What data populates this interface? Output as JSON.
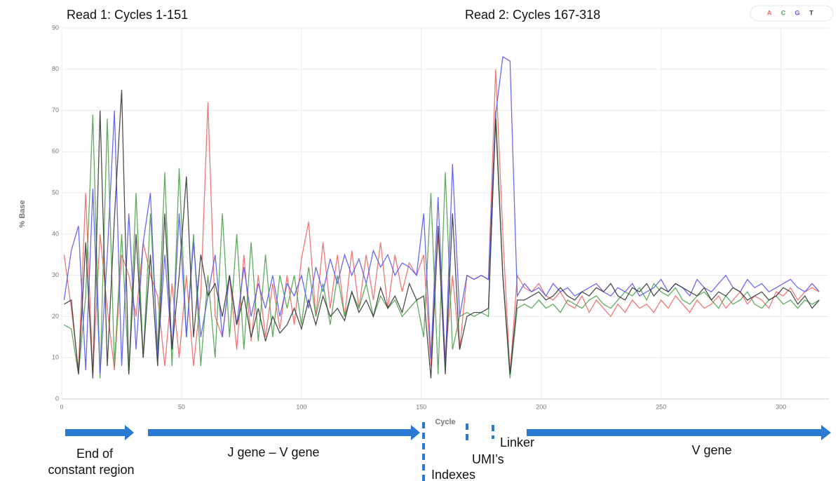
{
  "chart_data": {
    "type": "line",
    "annotations": [
      "Read 1: Cycles 1-151",
      "Read 2: Cycles 167-318"
    ],
    "ylabel": "% Base",
    "xlabel": "Cycle",
    "region_labels": [
      "End of",
      "constant region",
      "J gene – V gene",
      "Indexes",
      "UMI’s",
      "Linker",
      "V gene"
    ],
    "xlim": [
      0,
      320
    ],
    "ylim": [
      0,
      90
    ],
    "xticks": [
      0,
      50,
      100,
      150,
      200,
      250,
      300
    ],
    "yticks": [
      0,
      10,
      20,
      30,
      40,
      50,
      60,
      70,
      80,
      90
    ],
    "grid": true,
    "x": [
      1,
      4,
      7,
      10,
      13,
      16,
      19,
      22,
      25,
      28,
      31,
      34,
      37,
      40,
      43,
      46,
      49,
      52,
      55,
      58,
      61,
      64,
      67,
      70,
      73,
      76,
      79,
      82,
      85,
      88,
      91,
      94,
      97,
      100,
      103,
      106,
      109,
      112,
      115,
      118,
      121,
      124,
      127,
      130,
      133,
      136,
      139,
      142,
      145,
      148,
      151,
      154,
      157,
      160,
      163,
      166,
      169,
      172,
      175,
      178,
      181,
      184,
      187,
      190,
      193,
      196,
      199,
      202,
      205,
      208,
      211,
      214,
      217,
      220,
      223,
      226,
      229,
      232,
      235,
      238,
      241,
      244,
      247,
      250,
      253,
      256,
      259,
      262,
      265,
      268,
      271,
      274,
      277,
      280,
      283,
      286,
      289,
      292,
      295,
      298,
      301,
      304,
      307,
      310,
      313,
      316
    ],
    "series": [
      {
        "name": "A",
        "color": "#f06868",
        "values": [
          35,
          22,
          7,
          50,
          6,
          40,
          22,
          7,
          35,
          30,
          20,
          38,
          30,
          25,
          8,
          28,
          10,
          30,
          8,
          25,
          72,
          20,
          15,
          30,
          12,
          35,
          14,
          30,
          15,
          28,
          17,
          30,
          18,
          34,
          43,
          20,
          38,
          22,
          35,
          20,
          36,
          22,
          35,
          24,
          38,
          22,
          35,
          26,
          33,
          30,
          35,
          8,
          40,
          10,
          30,
          12,
          30,
          29,
          30,
          29,
          80,
          40,
          6,
          30,
          27,
          26,
          28,
          25,
          24,
          26,
          23,
          22,
          25,
          21,
          24,
          22,
          20,
          23,
          21,
          24,
          22,
          23,
          21,
          24,
          22,
          25,
          23,
          21,
          24,
          22,
          23,
          25,
          22,
          24,
          26,
          23,
          25,
          24,
          22,
          26,
          25,
          27,
          24,
          26,
          27,
          26
        ]
      },
      {
        "name": "C",
        "color": "#4fa24f",
        "values": [
          18,
          17,
          6,
          25,
          69,
          5,
          68,
          8,
          40,
          6,
          50,
          10,
          45,
          12,
          55,
          8,
          56,
          15,
          40,
          8,
          30,
          10,
          45,
          15,
          40,
          12,
          38,
          14,
          35,
          15,
          30,
          22,
          30,
          18,
          32,
          20,
          28,
          18,
          30,
          20,
          26,
          22,
          28,
          20,
          25,
          22,
          24,
          20,
          22,
          24,
          15,
          50,
          6,
          55,
          12,
          20,
          21,
          20,
          21,
          20,
          70,
          30,
          5,
          22,
          23,
          22,
          24,
          22,
          23,
          21,
          24,
          23,
          22,
          24,
          25,
          23,
          22,
          24,
          26,
          25,
          27,
          24,
          28,
          26,
          25,
          27,
          24,
          23,
          25,
          26,
          24,
          22,
          25,
          23,
          24,
          26,
          23,
          22,
          24,
          25,
          23,
          24,
          22,
          24,
          23,
          24
        ]
      },
      {
        "name": "G",
        "color": "#5a5af0",
        "values": [
          24,
          36,
          42,
          7,
          51,
          6,
          35,
          70,
          8,
          45,
          12,
          38,
          50,
          10,
          35,
          12,
          45,
          15,
          38,
          15,
          25,
          35,
          15,
          30,
          18,
          32,
          20,
          28,
          22,
          30,
          20,
          28,
          25,
          30,
          22,
          32,
          26,
          34,
          28,
          35,
          30,
          34,
          28,
          36,
          32,
          35,
          30,
          33,
          32,
          30,
          45,
          10,
          49,
          8,
          57,
          20,
          30,
          29,
          30,
          29,
          69,
          83,
          82,
          25,
          28,
          26,
          27,
          25,
          28,
          26,
          27,
          25,
          26,
          27,
          28,
          26,
          25,
          27,
          26,
          28,
          25,
          26,
          27,
          29,
          26,
          28,
          27,
          25,
          29,
          27,
          26,
          28,
          30,
          27,
          26,
          29,
          27,
          28,
          26,
          27,
          28,
          29,
          27,
          26,
          28,
          26
        ]
      },
      {
        "name": "T",
        "color": "#3a3a3a",
        "values": [
          23,
          24,
          6,
          38,
          5,
          70,
          8,
          44,
          75,
          6,
          40,
          10,
          35,
          8,
          45,
          12,
          30,
          54,
          15,
          35,
          25,
          28,
          20,
          30,
          18,
          25,
          15,
          22,
          14,
          20,
          16,
          18,
          22,
          17,
          24,
          18,
          25,
          20,
          22,
          19,
          26,
          21,
          24,
          20,
          27,
          22,
          25,
          21,
          28,
          24,
          25,
          5,
          42,
          6,
          45,
          12,
          20,
          21,
          21,
          22,
          68,
          30,
          6,
          24,
          24,
          25,
          26,
          24,
          25,
          27,
          25,
          24,
          26,
          25,
          27,
          26,
          28,
          25,
          24,
          27,
          26,
          28,
          25,
          27,
          26,
          28,
          27,
          26,
          25,
          27,
          24,
          26,
          25,
          27,
          26,
          24,
          25,
          26,
          24,
          25,
          27,
          26,
          23,
          25,
          22,
          24
        ]
      }
    ]
  }
}
